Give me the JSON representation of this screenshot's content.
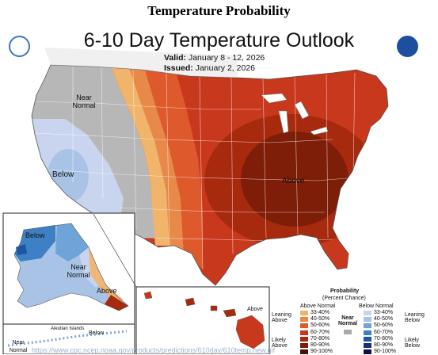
{
  "page_title": "Temperature Probability",
  "map": {
    "title": "6-10 Day Temperature Outlook",
    "valid_label": "Valid:",
    "valid_value": "January 8 - 12, 2026",
    "issued_label": "Issued:",
    "issued_value": "January 2, 2026",
    "region_labels": {
      "conus_near_normal": "Near Normal",
      "conus_below": "Below",
      "conus_above": "Above",
      "alaska_below": "Below",
      "alaska_near_normal": "Near Normal",
      "alaska_above": "Above",
      "aleutian": "Aleutian Islands",
      "aleutian_below": "Below",
      "aleutian_near": "Near Normal",
      "hawaii_above": "Above"
    }
  },
  "legend": {
    "title": "Probability",
    "subtitle": "(Percent Chance)",
    "above_header": "Above Normal",
    "below_header": "Below Normal",
    "near_label": "Near Normal",
    "leaning_above": "Leaning Above",
    "likely_above": "Likely Above",
    "leaning_below": "Leaning Below",
    "likely_below": "Likely Below",
    "above_bins": [
      {
        "label": "33-40%",
        "color": "#f0b46a"
      },
      {
        "label": "40-50%",
        "color": "#e8894a"
      },
      {
        "label": "50-60%",
        "color": "#de5a2c"
      },
      {
        "label": "60-70%",
        "color": "#c8381c"
      },
      {
        "label": "70-80%",
        "color": "#a82a0e"
      },
      {
        "label": "80-90%",
        "color": "#7e1e08"
      },
      {
        "label": "90-100%",
        "color": "#4a1004"
      }
    ],
    "below_bins": [
      {
        "label": "33-40%",
        "color": "#c9d5ee"
      },
      {
        "label": "40-50%",
        "color": "#a9c3e6"
      },
      {
        "label": "50-60%",
        "color": "#6fa4d8"
      },
      {
        "label": "60-70%",
        "color": "#3d80c4"
      },
      {
        "label": "70-80%",
        "color": "#1f56a3"
      },
      {
        "label": "80-90%",
        "color": "#1d2f7c"
      },
      {
        "label": "90-100%",
        "color": "#120f50"
      }
    ],
    "near_color": "#a9a9a9"
  },
  "colors": {
    "near_normal": "#b7b7b7",
    "below_light": "#c9d5ee",
    "below_mid": "#a9c3e6",
    "above_33": "#f0b46a",
    "above_40": "#e8894a",
    "above_50": "#de5a2c",
    "above_60": "#c8381c",
    "above_70": "#a82a0e",
    "above_80": "#7e1e08"
  },
  "footer_url": "https://www.cpc.ncep.noaa.gov/products/predictions/610day/610temp.new.gif",
  "icons": [
    "doc-logo",
    "noaa-logo"
  ]
}
